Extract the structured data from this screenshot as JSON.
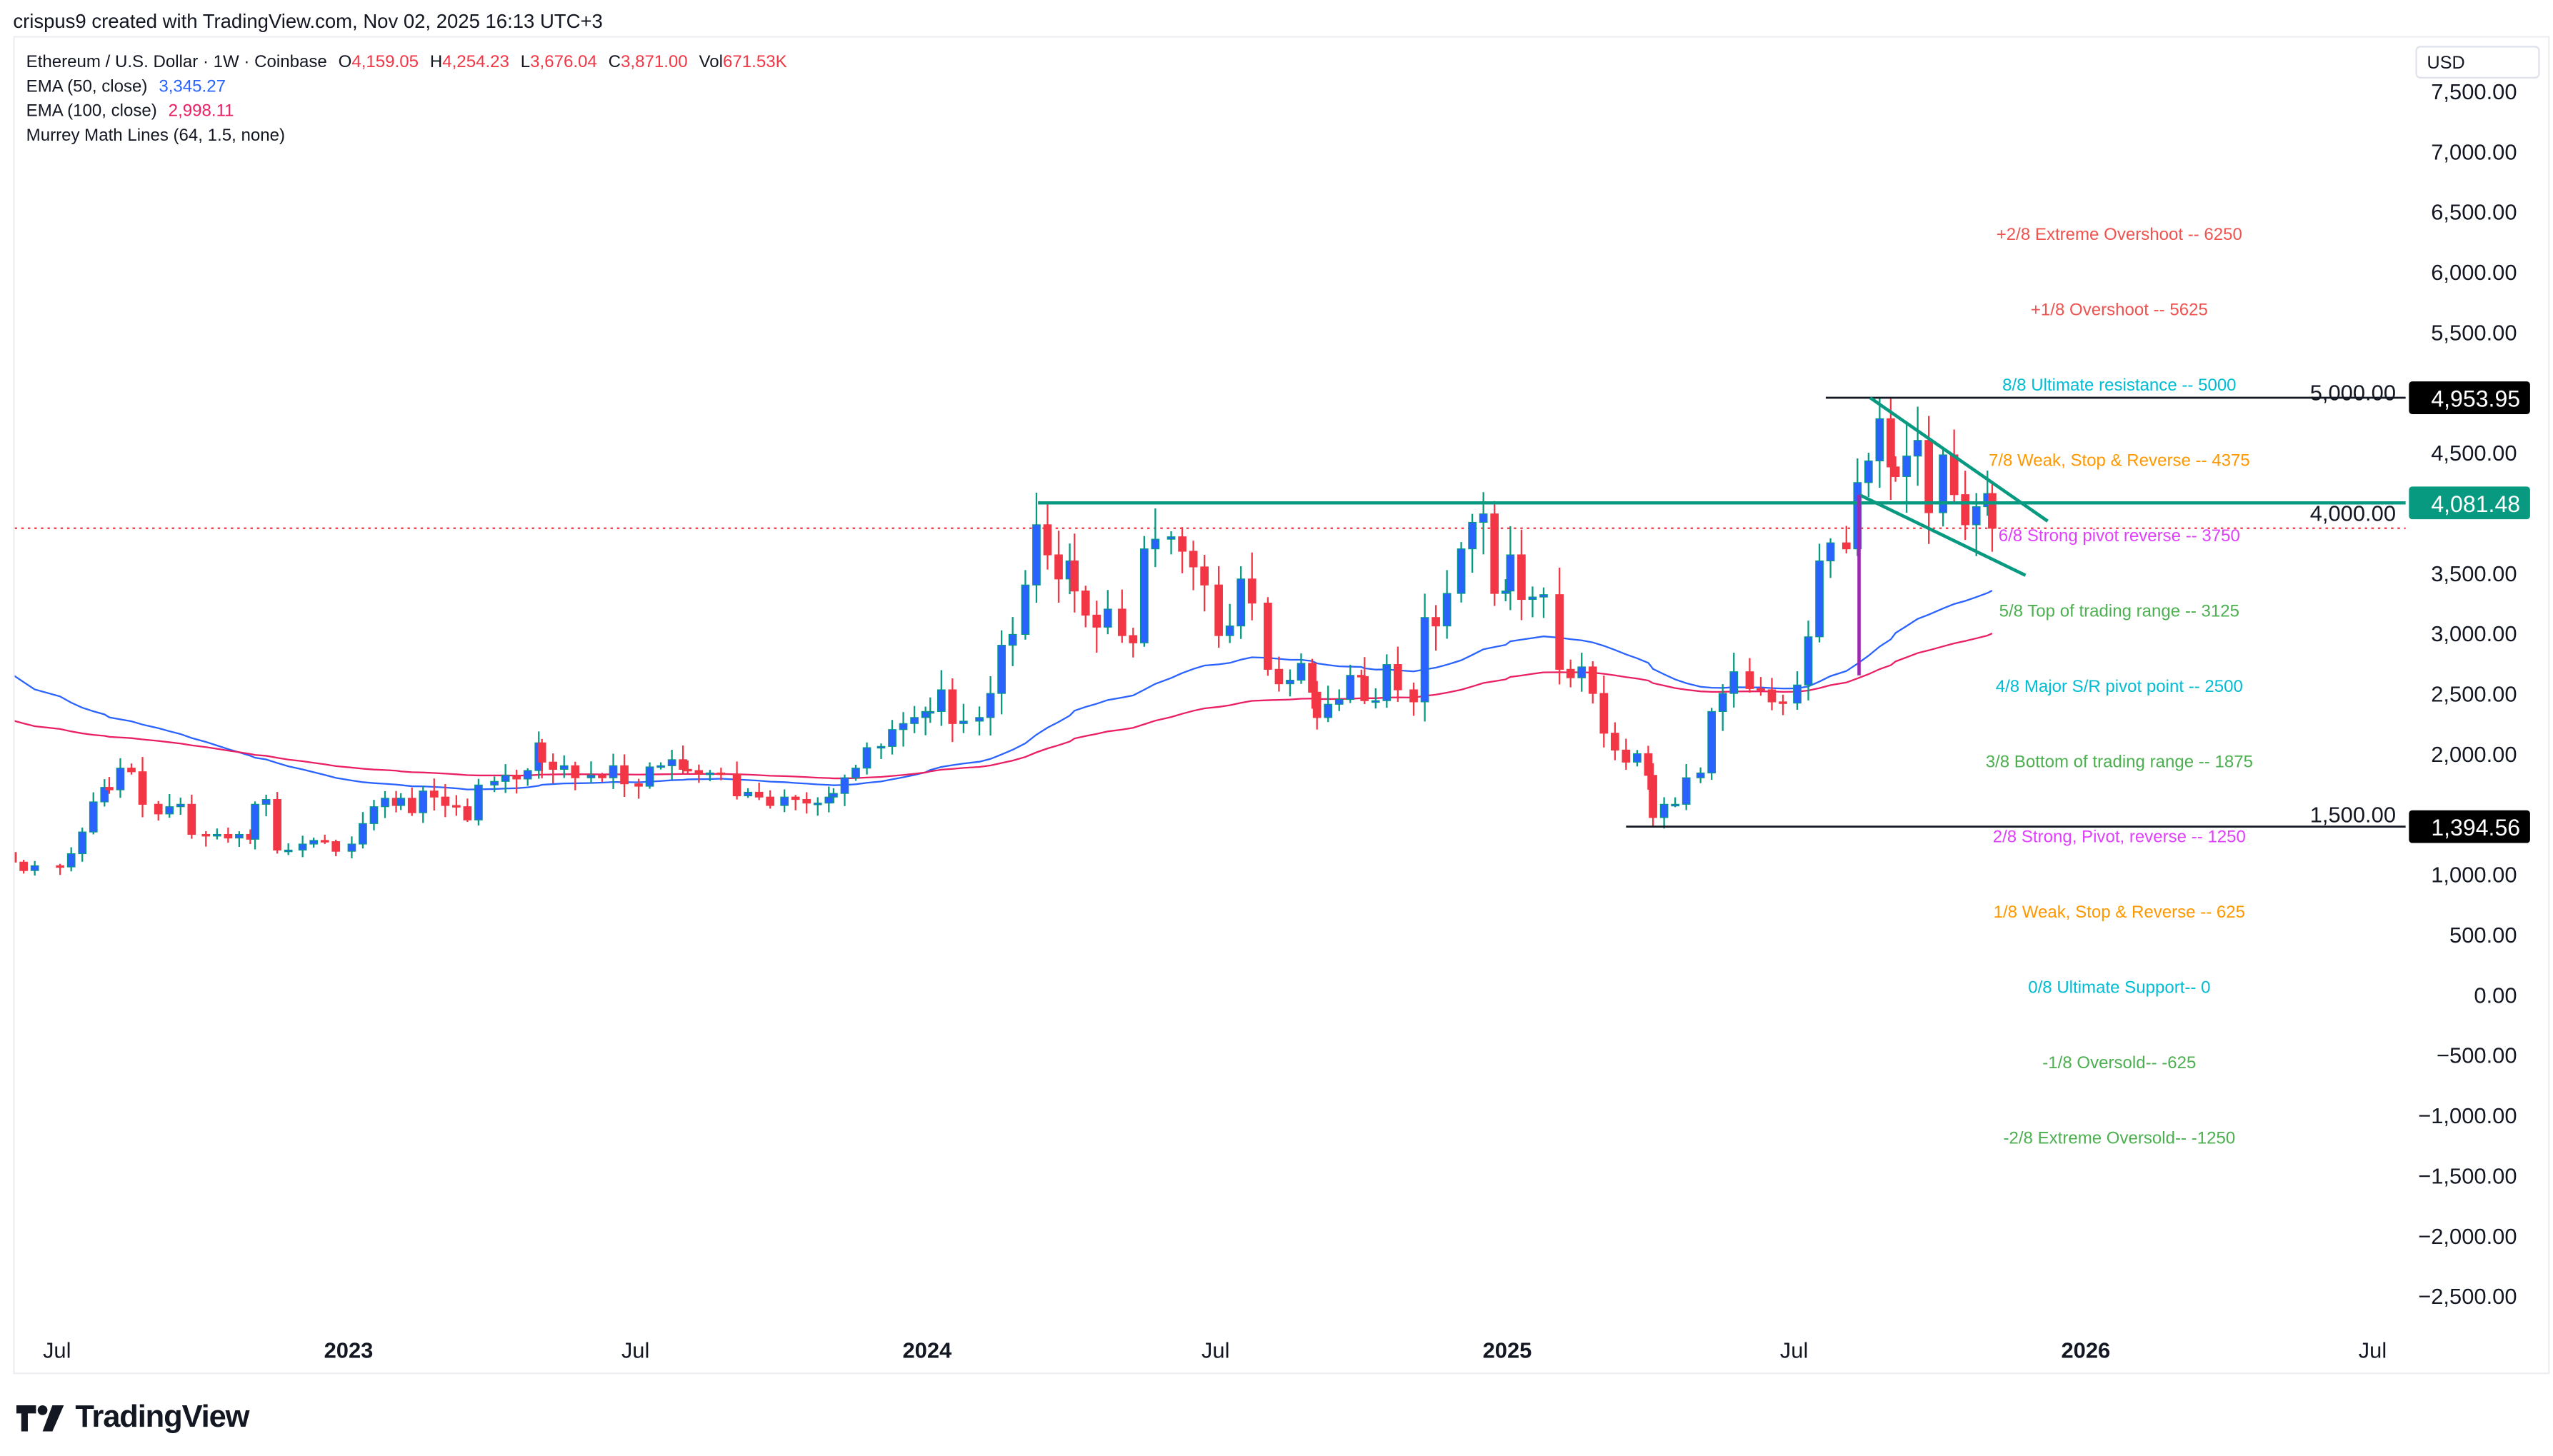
{
  "header": {
    "credit": "crispus9 created with TradingView.com, Nov 02, 2025 16:13 UTC+3",
    "symbol": "Ethereum / U.S. Dollar · 1W · Coinbase",
    "open_label": "O",
    "open": "4,159.05",
    "high_label": "H",
    "high": "4,254.23",
    "low_label": "L",
    "low": "3,676.04",
    "close_label": "C",
    "close": "3,871.00",
    "vol_label": "Vol",
    "vol": "671.53K",
    "ema50_label": "EMA (50, close)",
    "ema50": "3,345.27",
    "ema100_label": "EMA (100, close)",
    "ema100": "2,998.11",
    "murrey_label": "Murrey Math Lines (64, 1.5, none)"
  },
  "currency": "USD",
  "logo_text": "TradingView",
  "colors": {
    "up": "#2962ff",
    "up_wick": "#089981",
    "down": "#f23645",
    "ema50": "#2962ff",
    "ema100": "#e91e63",
    "trendline": "#089981",
    "flagpole": "#9c27b0",
    "current_price": "#f23645"
  },
  "chart_data": {
    "type": "candlestick",
    "timeframe": "1W",
    "ylim": [
      -2700,
      7600
    ],
    "y_ticks": [
      "7,500.00",
      "7,000.00",
      "6,500.00",
      "6,000.00",
      "5,500.00",
      "5,000.00",
      "4,500.00",
      "4,000.00",
      "3,500.00",
      "3,000.00",
      "2,500.00",
      "2,000.00",
      "1,500.00",
      "1,000.00",
      "500.00",
      "0.00",
      "−500.00",
      "−1,000.00",
      "−1,500.00",
      "−2,000.00",
      "−2,500.00"
    ],
    "y_tick_values": [
      7500,
      7000,
      6500,
      6000,
      5500,
      5000,
      4500,
      4000,
      3500,
      3000,
      2500,
      2000,
      1500,
      1000,
      500,
      0,
      -500,
      -1000,
      -1500,
      -2000,
      -2500
    ],
    "x_ticks": [
      {
        "label": "Jul",
        "date": "2022-07-01",
        "bold": false
      },
      {
        "label": "2023",
        "date": "2023-01-01",
        "bold": true
      },
      {
        "label": "Jul",
        "date": "2023-07-01",
        "bold": false
      },
      {
        "label": "2024",
        "date": "2024-01-01",
        "bold": true
      },
      {
        "label": "Jul",
        "date": "2024-07-01",
        "bold": false
      },
      {
        "label": "2025",
        "date": "2025-01-01",
        "bold": true
      },
      {
        "label": "Jul",
        "date": "2025-07-01",
        "bold": false
      },
      {
        "label": "2026",
        "date": "2026-01-01",
        "bold": true
      },
      {
        "label": "Jul",
        "date": "2026-07-01",
        "bold": false
      }
    ],
    "weekly_closes_by_month": {
      "2022-06": [
        1100,
        1030,
        1070
      ],
      "2022-07": [
        1060,
        1170,
        1350,
        1600,
        1720
      ],
      "2022-08": [
        1700,
        1880,
        1850,
        1580
      ],
      "2022-09": [
        1500,
        1560,
        1580,
        1330
      ],
      "2022-10": [
        1320,
        1330,
        1300,
        1330,
        1290
      ],
      "2022-11": [
        1580,
        1620,
        1200,
        1200
      ],
      "2022-12": [
        1250,
        1280,
        1270,
        1190
      ],
      "2023-01": [
        1250,
        1420,
        1560,
        1630,
        1570
      ],
      "2023-02": [
        1630,
        1510,
        1690,
        1640
      ],
      "2023-03": [
        1570,
        1560,
        1450,
        1740
      ],
      "2023-04": [
        1770,
        1820,
        1790,
        1860,
        2090
      ],
      "2023-05": [
        1930,
        1870,
        1900,
        1800
      ],
      "2023-06": [
        1820,
        1800,
        1900,
        1750
      ],
      "2023-07": [
        1730,
        1890,
        1900,
        1950,
        1870
      ],
      "2023-08": [
        1860,
        1830,
        1840,
        1830
      ],
      "2023-09": [
        1650,
        1680,
        1640,
        1570
      ],
      "2023-10": [
        1640,
        1620,
        1590,
        1590,
        1640
      ],
      "2023-11": [
        1670,
        1800,
        1880,
        2050
      ],
      "2023-12": [
        2060,
        2200,
        2250,
        2300,
        2350
      ],
      "2024-01": [
        2350,
        2530,
        2250,
        2270
      ],
      "2024-02": [
        2300,
        2500,
        2900,
        2990
      ],
      "2024-03": [
        3400,
        3900,
        3650,
        3450,
        3600
      ],
      "2024-04": [
        3350,
        3150,
        3050,
        3200
      ],
      "2024-05": [
        2980,
        2920,
        3700,
        3780
      ],
      "2024-06": [
        3800,
        3680,
        3550,
        3400
      ],
      "2024-07": [
        2980,
        3060,
        3450,
        3250
      ],
      "2024-08": [
        2700,
        2580,
        2610,
        2750,
        2510
      ],
      "2024-09": [
        2300,
        2410,
        2450,
        2650,
        2640
      ],
      "2024-10": [
        2440,
        2440,
        2740,
        2530
      ],
      "2024-11": [
        2430,
        3130,
        3060,
        3330
      ],
      "2024-12": [
        3700,
        3920,
        3990,
        3330,
        3350
      ],
      "2025-01": [
        3650,
        3280,
        3300,
        3320
      ],
      "2025-02": [
        2700,
        2630,
        2720,
        2500
      ],
      "2025-03": [
        2170,
        2030,
        1930,
        2000,
        1820
      ],
      "2025-04": [
        1470,
        1580,
        1580,
        1800
      ],
      "2025-05": [
        1840,
        2350,
        2500,
        2680
      ],
      "2025-06": [
        2540,
        2530,
        2430,
        2420
      ],
      "2025-07": [
        2570,
        2970,
        3600,
        3750
      ],
      "2025-08": [
        3700,
        4250,
        4430,
        4780,
        4380
      ],
      "2025-09": [
        4300,
        4470,
        4600,
        4000
      ],
      "2025-10": [
        4480,
        4150,
        3900,
        4050,
        4159.05
      ],
      "2025-11": [
        3871
      ]
    },
    "last_candle": {
      "open": 4159.05,
      "high": 4254.23,
      "low": 3676.04,
      "close": 3871.0
    },
    "ema_series": [
      {
        "name": "EMA (50, close)",
        "period": 50,
        "last": 3345.27
      },
      {
        "name": "EMA (100, close)",
        "period": 100,
        "last": 2998.11
      }
    ],
    "current_price": 3871.0,
    "price_levels": [
      {
        "label": "4,953.95",
        "value": 4953.95,
        "from": "2025-07-21",
        "style": "black"
      },
      {
        "label": "4,081.48",
        "value": 4081.48,
        "from": "2024-03-11",
        "style": "green"
      },
      {
        "label": "1,394.56",
        "value": 1394.56,
        "from": "2025-03-17",
        "style": "black"
      }
    ],
    "flag_lines": [
      {
        "from": [
          "2025-08-18",
          4953.95
        ],
        "to": [
          "2025-12-08",
          3930
        ]
      },
      {
        "from": [
          "2025-08-11",
          4150
        ],
        "to": [
          "2025-11-24",
          3480
        ]
      }
    ],
    "flagpole": {
      "date": "2025-08-11",
      "from": 2650,
      "to": 4150
    },
    "murrey_lines": [
      {
        "text": "+2/8 Extreme Overshoot --  6250",
        "value": 6250,
        "color": "#ef5350"
      },
      {
        "text": "+1/8 Overshoot --  5625",
        "value": 5625,
        "color": "#ef5350"
      },
      {
        "text": "8/8 Ultimate resistance --  5000",
        "value": 5000,
        "color": "#00bcd4"
      },
      {
        "text": "7/8 Weak, Stop & Reverse --  4375",
        "value": 4375,
        "color": "#ff9800"
      },
      {
        "text": "6/8 Strong pivot reverse --  3750",
        "value": 3750,
        "color": "#e040fb"
      },
      {
        "text": "5/8 Top of trading range --  3125",
        "value": 3125,
        "color": "#4caf50"
      },
      {
        "text": "4/8 Major S/R pivot point --  2500",
        "value": 2500,
        "color": "#00bcd4"
      },
      {
        "text": "3/8 Bottom of trading range --  1875",
        "value": 1875,
        "color": "#4caf50"
      },
      {
        "text": "2/8 Strong, Pivot, reverse --  1250",
        "value": 1250,
        "color": "#e040fb"
      },
      {
        "text": "1/8 Weak, Stop & Reverse --  625",
        "value": 625,
        "color": "#ff9800"
      },
      {
        "text": "0/8 Ultimate Support--  0",
        "value": 0,
        "color": "#00bcd4"
      },
      {
        "text": "-1/8 Oversold--  -625",
        "value": -625,
        "color": "#4caf50"
      },
      {
        "text": "-2/8 Extreme Oversold--  -1250",
        "value": -1250,
        "color": "#4caf50"
      }
    ]
  }
}
